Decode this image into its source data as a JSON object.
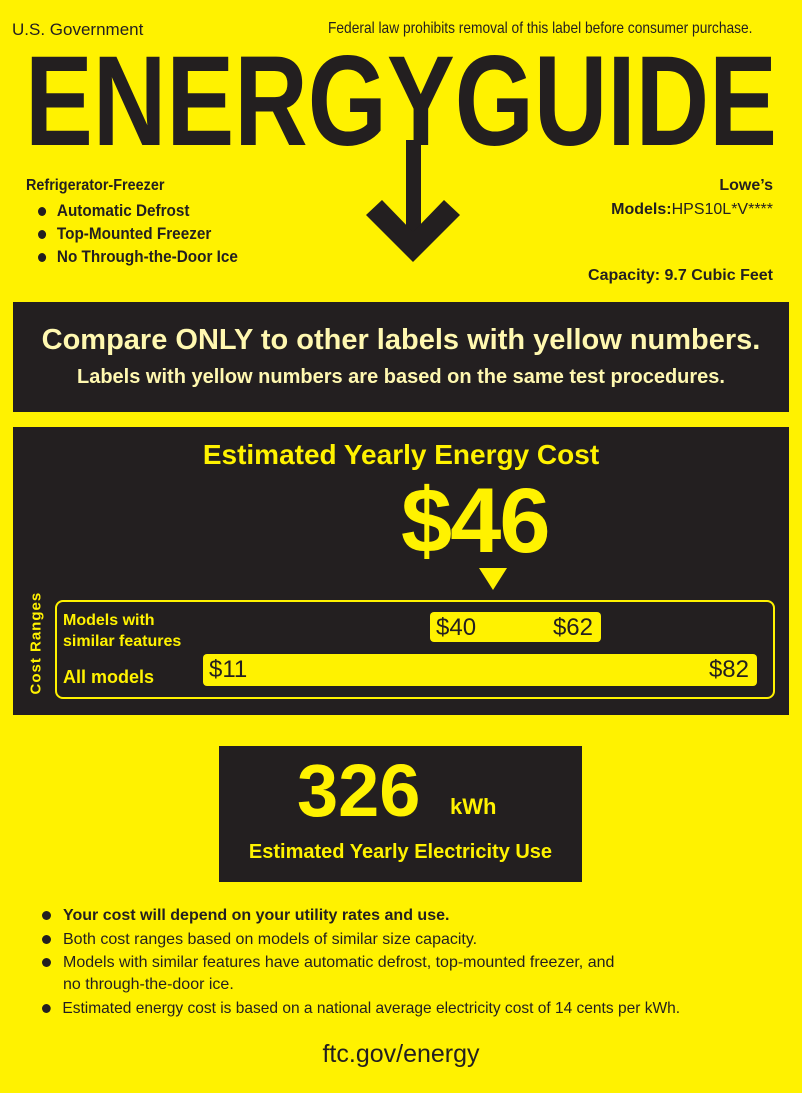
{
  "header": {
    "government": "U.S. Government",
    "notice": "Federal law prohibits removal of this label before consumer purchase.",
    "title": "ENERGYGUIDE"
  },
  "product": {
    "type": "Refrigerator-Freezer",
    "features": [
      "Automatic Defrost",
      "Top-Mounted Freezer",
      "No Through-the-Door Ice"
    ],
    "brand": "Lowe’s",
    "models_label": "Models:",
    "models_value": "HPS10L*V****",
    "capacity": "Capacity: 9.7 Cubic Feet"
  },
  "compare": {
    "line1": "Compare ONLY to other labels with yellow numbers.",
    "line2": "Labels with yellow numbers are based on the same test procedures."
  },
  "cost": {
    "heading": "Estimated Yearly Energy Cost",
    "value": "$46",
    "ranges_label": "Cost  Ranges",
    "similar_label_1": "Models with",
    "similar_label_2": "similar features",
    "similar_low": "$40",
    "similar_high": "$62",
    "all_label": "All models",
    "all_low": "$11",
    "all_high": "$82"
  },
  "electricity": {
    "value": "326",
    "unit": "kWh",
    "label": "Estimated Yearly Electricity Use"
  },
  "notes": [
    "Your cost will depend on your utility rates and use.",
    "Both cost ranges based on models of similar size capacity.",
    "Models with similar features have automatic defrost, top-mounted freezer, and",
    "no through-the-door ice.",
    "Estimated energy cost is based on a national average electricity cost of 14 cents per kWh."
  ],
  "footer": {
    "url": "ftc.gov/energy"
  },
  "colors": {
    "label_yellow": "#fff200",
    "panel_black": "#231f20"
  }
}
